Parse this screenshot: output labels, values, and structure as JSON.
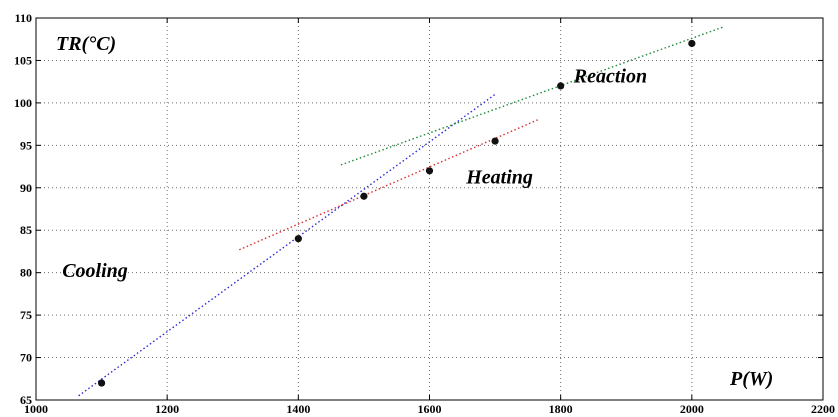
{
  "chart_data": {
    "type": "scatter",
    "xlim": [
      1000,
      2200
    ],
    "ylim": [
      65,
      110
    ],
    "x_ticks": [
      1000,
      1200,
      1400,
      1600,
      1800,
      2000,
      2200
    ],
    "y_ticks": [
      65,
      70,
      75,
      80,
      85,
      90,
      95,
      100,
      105,
      110
    ],
    "grid": true,
    "axis_labels": {
      "x": "P(W)",
      "y": "TR(°C)"
    },
    "points": [
      {
        "x": 1100,
        "y": 67
      },
      {
        "x": 1400,
        "y": 84
      },
      {
        "x": 1500,
        "y": 89
      },
      {
        "x": 1600,
        "y": 92
      },
      {
        "x": 1700,
        "y": 95.5
      },
      {
        "x": 1800,
        "y": 102
      },
      {
        "x": 2000,
        "y": 107
      }
    ],
    "fit_lines": [
      {
        "label": "Cooling",
        "color": "#2b2bd8",
        "x": [
          1065,
          1700
        ],
        "y": [
          65.5,
          101
        ]
      },
      {
        "label": "Heating",
        "color": "#d82b2b",
        "x": [
          1310,
          1765
        ],
        "y": [
          82.7,
          98
        ]
      },
      {
        "label": "Reaction",
        "color": "#1f8a3a",
        "x": [
          1465,
          2050
        ],
        "y": [
          92.7,
          109
        ]
      }
    ],
    "annotations": [
      {
        "text": "Cooling",
        "x": 1040,
        "y": 79.5
      },
      {
        "text": "Heating",
        "x": 1656,
        "y": 90.5
      },
      {
        "text": "Reaction",
        "x": 1820,
        "y": 102.4
      }
    ]
  }
}
